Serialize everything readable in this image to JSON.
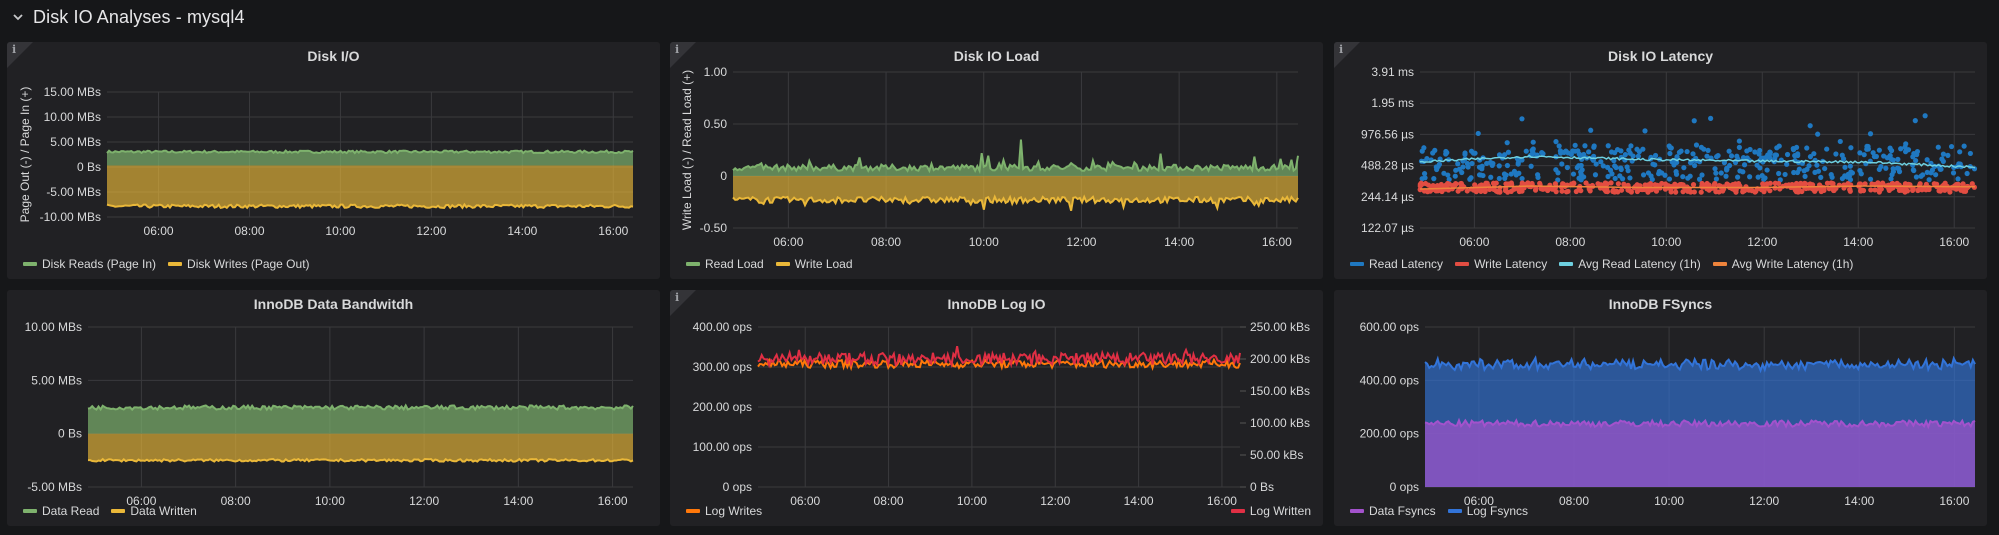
{
  "row": {
    "title": "Disk IO Analyses - mysql4",
    "collapse_icon": "chevron-down-icon"
  },
  "x_ticks": [
    "06:00",
    "08:00",
    "10:00",
    "12:00",
    "14:00",
    "16:00"
  ],
  "colors": {
    "green": "#7eb26d",
    "yellow": "#eab839",
    "blue": "#1f78c1",
    "red": "#e24d42",
    "cyan": "#6ed0e0",
    "orange": "#ef843c",
    "crimson": "#e02f44",
    "log_orange": "#ff780a",
    "purple": "#a352cc",
    "logblue": "#3274d9",
    "grid": "#3a3a3d",
    "panel_bg": "#212124",
    "page_bg": "#161719"
  },
  "panels": [
    {
      "id": "disk-io",
      "title": "Disk I/O",
      "has_info": true,
      "ylabel": "Page Out (-) / Page In (+)",
      "y_ticks": [
        "15.00 MBs",
        "10.00 MBs",
        "5.00 MBs",
        "0 Bs",
        "-5.00 MBs",
        "-10.00 MBs"
      ],
      "legend": [
        {
          "label": "Disk Reads (Page In)",
          "color": "#7eb26d"
        },
        {
          "label": "Disk Writes (Page Out)",
          "color": "#eab839"
        }
      ]
    },
    {
      "id": "disk-io-load",
      "title": "Disk IO Load",
      "has_info": true,
      "ylabel": "Write Load (-) / Read Load (+)",
      "y_ticks": [
        "1.00",
        "0.50",
        "0",
        "-0.50"
      ],
      "legend": [
        {
          "label": "Read Load",
          "color": "#7eb26d"
        },
        {
          "label": "Write Load",
          "color": "#eab839"
        }
      ]
    },
    {
      "id": "disk-io-latency",
      "title": "Disk IO Latency",
      "has_info": true,
      "ylabel": "",
      "y_ticks": [
        "3.91 ms",
        "1.95 ms",
        "976.56 µs",
        "488.28 µs",
        "244.14 µs",
        "122.07 µs"
      ],
      "legend": [
        {
          "label": "Read Latency",
          "color": "#1f78c1"
        },
        {
          "label": "Write Latency",
          "color": "#e24d42"
        },
        {
          "label": "Avg Read Latency (1h)",
          "color": "#6ed0e0"
        },
        {
          "label": "Avg Write Latency (1h)",
          "color": "#ef843c"
        }
      ]
    },
    {
      "id": "innodb-data-bandwidth",
      "title": "InnoDB Data Bandwitdh",
      "has_info": false,
      "ylabel": "",
      "y_ticks": [
        "10.00 MBs",
        "5.00 MBs",
        "0 Bs",
        "-5.00 MBs"
      ],
      "legend": [
        {
          "label": "Data Read",
          "color": "#7eb26d"
        },
        {
          "label": "Data Written",
          "color": "#eab839"
        }
      ]
    },
    {
      "id": "innodb-log-io",
      "title": "InnoDB Log IO",
      "has_info": true,
      "ylabel": "",
      "y_ticks": [
        "400.00 ops",
        "300.00 ops",
        "200.00 ops",
        "100.00 ops",
        "0 ops"
      ],
      "y2_ticks": [
        "250.00 kBs",
        "200.00 kBs",
        "150.00 kBs",
        "100.00 kBs",
        "50.00 kBs",
        "0 Bs"
      ],
      "legend": [
        {
          "label": "Log Writes",
          "color": "#ff780a"
        }
      ],
      "legend_right": [
        {
          "label": "Log Written",
          "color": "#e02f44"
        }
      ]
    },
    {
      "id": "innodb-fsyncs",
      "title": "InnoDB FSyncs",
      "has_info": false,
      "ylabel": "",
      "y_ticks": [
        "600.00 ops",
        "400.00 ops",
        "200.00 ops",
        "0 ops"
      ],
      "legend": [
        {
          "label": "Data Fsyncs",
          "color": "#a352cc"
        },
        {
          "label": "Log Fsyncs",
          "color": "#3274d9"
        }
      ]
    }
  ],
  "chart_data": [
    {
      "type": "area",
      "title": "Disk I/O",
      "ylabel": "Page Out (-) / Page In (+)",
      "xlabel": "",
      "x_range": [
        "04:52",
        "16:26"
      ],
      "ylim": [
        -10.5,
        15
      ],
      "unit": "MBs",
      "categories": [
        "06:00",
        "08:00",
        "10:00",
        "12:00",
        "14:00",
        "16:00"
      ],
      "series": [
        {
          "name": "Disk Reads (Page In)",
          "values": [
            2.8,
            2.7,
            2.8,
            2.8,
            2.7,
            2.8
          ],
          "mean": 2.8,
          "noise": 0.25
        },
        {
          "name": "Disk Writes (Page Out)",
          "values": [
            -8.3,
            -8.2,
            -8.1,
            -8.3,
            -8.3,
            -8.3
          ],
          "mean": -8.3,
          "noise": 0.35
        }
      ]
    },
    {
      "type": "area",
      "title": "Disk IO Load",
      "ylabel": "Write Load (-) / Read Load (+)",
      "xlabel": "",
      "x_range": [
        "04:52",
        "16:26"
      ],
      "ylim": [
        -0.5,
        1.0
      ],
      "categories": [
        "06:00",
        "08:00",
        "10:00",
        "12:00",
        "14:00",
        "16:00"
      ],
      "series": [
        {
          "name": "Read Load",
          "values": [
            0.08,
            0.1,
            0.08,
            0.08,
            0.1,
            0.08
          ],
          "mean": 0.08,
          "noise": 0.03,
          "peak": {
            "at": "10:45",
            "value": 0.35
          }
        },
        {
          "name": "Write Load",
          "values": [
            -0.22,
            -0.23,
            -0.22,
            -0.23,
            -0.23,
            -0.24
          ],
          "mean": -0.23,
          "noise": 0.03
        }
      ]
    },
    {
      "type": "scatter",
      "title": "Disk IO Latency",
      "ylabel": "",
      "xlabel": "",
      "yscale": "log2",
      "x_range": [
        "04:52",
        "16:26"
      ],
      "ylim_us": [
        122.07,
        3906.25
      ],
      "categories": [
        "06:00",
        "08:00",
        "10:00",
        "12:00",
        "14:00",
        "16:00"
      ],
      "series": [
        {
          "name": "Read Latency",
          "values_us": [
            520,
            560,
            500,
            540,
            520,
            470
          ],
          "mean_us": 520,
          "spread": 0.55
        },
        {
          "name": "Write Latency",
          "values_us": [
            290,
            305,
            295,
            300,
            310,
            305
          ],
          "mean_us": 300,
          "spread": 0.15
        },
        {
          "name": "Avg Read Latency (1h)",
          "values_us": [
            530,
            600,
            560,
            540,
            530,
            470
          ],
          "type": "line"
        },
        {
          "name": "Avg Write Latency (1h)",
          "values_us": [
            290,
            310,
            300,
            300,
            310,
            305
          ],
          "type": "line"
        }
      ]
    },
    {
      "type": "area",
      "title": "InnoDB Data Bandwitdh",
      "ylabel": "",
      "xlabel": "",
      "x_range": [
        "04:52",
        "16:26"
      ],
      "ylim": [
        -5,
        10
      ],
      "unit": "MBs",
      "categories": [
        "06:00",
        "08:00",
        "10:00",
        "12:00",
        "14:00",
        "16:00"
      ],
      "series": [
        {
          "name": "Data Read",
          "values": [
            2.4,
            2.4,
            2.5,
            2.4,
            2.5,
            2.4
          ],
          "mean": 2.45,
          "noise": 0.2
        },
        {
          "name": "Data Written",
          "values": [
            -2.5,
            -2.5,
            -2.5,
            -2.5,
            -2.5,
            -2.5
          ],
          "mean": -2.5,
          "noise": 0.12
        }
      ]
    },
    {
      "type": "line",
      "title": "InnoDB Log IO",
      "ylabel": "",
      "xlabel": "",
      "x_range": [
        "04:52",
        "16:26"
      ],
      "ylim": [
        0,
        400
      ],
      "y2lim": [
        0,
        250
      ],
      "y_unit": "ops",
      "y2_unit": "kBs",
      "categories": [
        "06:00",
        "08:00",
        "10:00",
        "12:00",
        "14:00",
        "16:00"
      ],
      "series": [
        {
          "name": "Log Writes",
          "axis": "left",
          "values": [
            310,
            305,
            308,
            306,
            310,
            305
          ],
          "mean": 308,
          "noise": 10
        },
        {
          "name": "Log Written",
          "axis": "right",
          "values_kBs": [
            200,
            198,
            200,
            199,
            202,
            198
          ],
          "mean_kBs": 200,
          "noise_kBs": 10
        }
      ]
    },
    {
      "type": "area",
      "title": "InnoDB FSyncs",
      "ylabel": "",
      "xlabel": "",
      "stacked": true,
      "x_range": [
        "04:52",
        "16:26"
      ],
      "ylim": [
        0,
        600
      ],
      "categories": [
        "06:00",
        "08:00",
        "10:00",
        "12:00",
        "14:00",
        "16:00"
      ],
      "series": [
        {
          "name": "Data Fsyncs",
          "values": [
            240,
            235,
            238,
            235,
            240,
            238
          ],
          "mean": 238,
          "noise": 12
        },
        {
          "name": "Log Fsyncs",
          "values": [
            220,
            215,
            220,
            222,
            220,
            222
          ],
          "mean": 222,
          "noise": 14
        }
      ]
    }
  ]
}
